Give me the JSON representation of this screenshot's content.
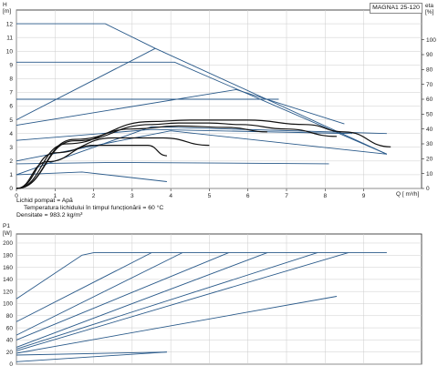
{
  "model": "MAGNA1 25-120",
  "info_lines": [
    "Lichid pompat = Apă",
    "Temperatura lichidului în timpul funcționării = 60 °C",
    "Densitate = 983.2 kg/m³"
  ],
  "colors": {
    "curve": "#2a5a8a",
    "efficiency": "#111111",
    "grid": "#cccccc",
    "axis": "#222222"
  },
  "chart_data": [
    {
      "type": "line",
      "panel": "H",
      "ylabel_top": "H",
      "ylabel_unit": "[m]",
      "ylabel_right_top": "eta",
      "ylabel_right_unit": "[%]",
      "xlabel": "Q [ m³/h]",
      "xlim": [
        0,
        10.5
      ],
      "ylim": [
        0,
        13
      ],
      "x_ticks": [
        "0",
        "1",
        "2",
        "3",
        "4",
        "5",
        "6",
        "7",
        "8",
        "9"
      ],
      "y_ticks": [
        "0",
        "1",
        "2",
        "3",
        "4",
        "5",
        "6",
        "7",
        "8",
        "9",
        "10",
        "11",
        "12"
      ],
      "eta_ticks": [
        "0",
        "10",
        "20",
        "30",
        "40",
        "50",
        "60",
        "70",
        "80",
        "90",
        "100"
      ],
      "eta_max_eta": 120,
      "series": [
        {
          "values": [
            [
              0,
              12
            ],
            [
              2.3,
              12
            ],
            [
              3.6,
              10.2
            ],
            [
              9.6,
              2.5
            ]
          ]
        },
        {
          "values": [
            [
              0,
              9.2
            ],
            [
              4.1,
              9.2
            ],
            [
              9.6,
              2.5
            ]
          ]
        },
        {
          "values": [
            [
              0,
              6.5
            ],
            [
              5.6,
              6.5
            ],
            [
              6.8,
              6.5
            ]
          ]
        },
        {
          "values": [
            [
              0,
              5
            ],
            [
              3.6,
              10.2
            ]
          ]
        },
        {
          "values": [
            [
              0,
              4.6
            ],
            [
              5.7,
              7.2
            ],
            [
              8.5,
              4.7
            ]
          ]
        },
        {
          "values": [
            [
              0,
              3.5
            ],
            [
              3.5,
              4.3
            ],
            [
              8.7,
              4
            ]
          ]
        },
        {
          "values": [
            [
              0,
              2
            ],
            [
              4,
              4.2
            ],
            [
              9.6,
              2.5
            ]
          ]
        },
        {
          "values": [
            [
              0,
              1.8
            ],
            [
              2.5,
              1.9
            ],
            [
              8.1,
              1.8
            ]
          ]
        },
        {
          "values": [
            [
              0,
              1
            ],
            [
              1.7,
              1.2
            ],
            [
              3.9,
              0.5
            ]
          ]
        },
        {
          "values": [
            [
              0,
              1
            ],
            [
              3.5,
              4.5
            ],
            [
              9.6,
              4
            ]
          ]
        }
      ],
      "efficiency_series": [
        {
          "values": [
            [
              0,
              0
            ],
            [
              1.5,
              32
            ],
            [
              3.5,
              43
            ],
            [
              4.2,
              44
            ],
            [
              5,
              44
            ],
            [
              5.8,
              43
            ],
            [
              7,
              40
            ],
            [
              8.3,
              35
            ]
          ]
        },
        {
          "values": [
            [
              0,
              0
            ],
            [
              1.5,
              33
            ],
            [
              3.5,
              45
            ],
            [
              4.5,
              46
            ],
            [
              6,
              46
            ],
            [
              7.5,
              43
            ],
            [
              8.5,
              38
            ],
            [
              9.7,
              28
            ]
          ]
        },
        {
          "values": [
            [
              0,
              0
            ],
            [
              1.3,
              30
            ],
            [
              3,
              40
            ],
            [
              4.2,
              42
            ],
            [
              5.5,
              41
            ],
            [
              6.5,
              38
            ]
          ]
        },
        {
          "values": [
            [
              0,
              0
            ],
            [
              1,
              24
            ],
            [
              2.5,
              34
            ],
            [
              3.8,
              34
            ],
            [
              5,
              29
            ]
          ]
        },
        {
          "values": [
            [
              0,
              0
            ],
            [
              0.8,
              18
            ],
            [
              2,
              29
            ],
            [
              3.4,
              29
            ],
            [
              3.9,
              22
            ]
          ]
        }
      ]
    },
    {
      "type": "line",
      "panel": "P1",
      "ylabel_top": "P1",
      "ylabel_unit": "[W]",
      "xlim": [
        0,
        10.5
      ],
      "ylim": [
        0,
        215
      ],
      "y_ticks": [
        "0",
        "20",
        "40",
        "60",
        "80",
        "100",
        "120",
        "140",
        "160",
        "180",
        "200"
      ],
      "series": [
        {
          "values": [
            [
              0,
              108
            ],
            [
              1.7,
              180
            ],
            [
              2,
              184
            ],
            [
              9.6,
              184
            ]
          ]
        },
        {
          "values": [
            [
              0,
              70
            ],
            [
              3.5,
              184
            ]
          ]
        },
        {
          "values": [
            [
              0,
              48
            ],
            [
              4.3,
              184
            ]
          ]
        },
        {
          "values": [
            [
              0,
              40
            ],
            [
              5.5,
              184
            ]
          ]
        },
        {
          "values": [
            [
              0,
              28
            ],
            [
              6.5,
              184
            ]
          ]
        },
        {
          "values": [
            [
              0,
              25
            ],
            [
              7.8,
              184
            ]
          ]
        },
        {
          "values": [
            [
              0,
              22
            ],
            [
              8.6,
              184
            ]
          ]
        },
        {
          "values": [
            [
              0,
              18
            ],
            [
              8.3,
              112
            ]
          ]
        },
        {
          "values": [
            [
              0,
              15
            ],
            [
              3.9,
              20
            ]
          ]
        },
        {
          "values": [
            [
              0,
              4
            ],
            [
              3.9,
              20
            ]
          ]
        }
      ]
    }
  ]
}
